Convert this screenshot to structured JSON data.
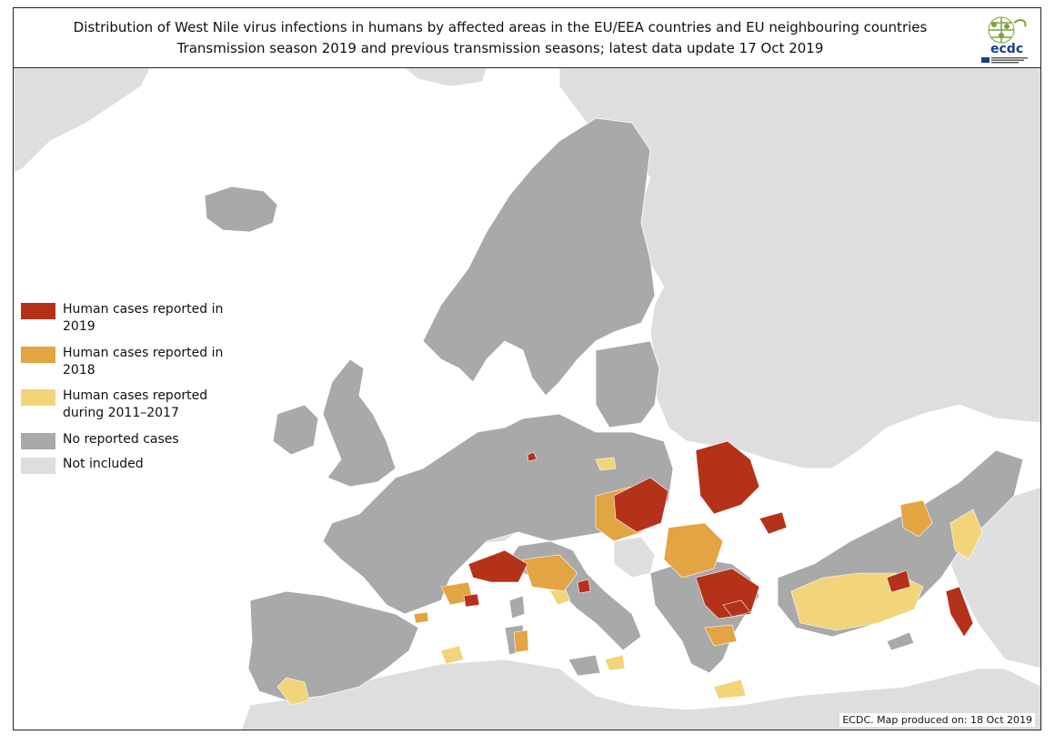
{
  "title": {
    "line1": "Distribution of West Nile virus infections in humans by affected areas in the EU/EEA countries and EU neighbouring countries",
    "line2": "Transmission season 2019 and previous transmission seasons; latest data update  17 Oct 2019"
  },
  "logo": {
    "text": "ecdc",
    "subtext": "EUROPEAN CENTRE FOR DISEASE PREVENTION AND CONTROL"
  },
  "legend": [
    {
      "label": "Human cases reported in 2019",
      "color": "#b5321a"
    },
    {
      "label": "Human cases reported in 2018",
      "color": "#e3a443"
    },
    {
      "label": "Human cases reported during 2011–2017",
      "color": "#f2d57a"
    },
    {
      "label": "No reported cases",
      "color": "#a9a9a9"
    },
    {
      "label": "Not included",
      "color": "#dedede"
    }
  ],
  "credit": "ECDC. Map produced on: 18 Oct 2019",
  "colors": {
    "sea": "#ffffff",
    "outside": "#dedede",
    "no_cases": "#a9a9a9",
    "y2019": "#b5321a",
    "y2018": "#e3a443",
    "y2011_2017": "#f2d57a"
  }
}
